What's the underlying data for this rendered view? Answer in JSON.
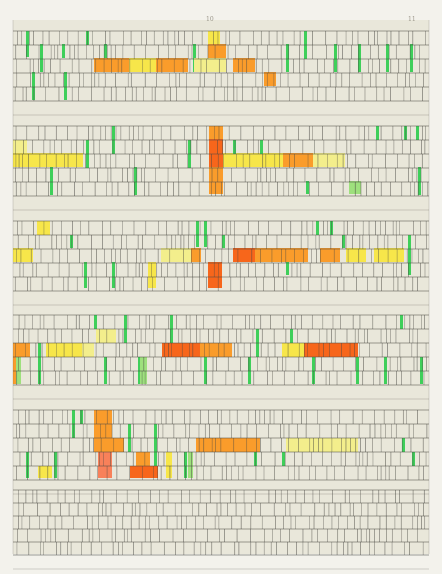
{
  "artwork": {
    "page_numbers": [
      "10",
      "11"
    ],
    "colors": {
      "background": "#f3f2ec",
      "paper": "#e9e7da",
      "rule_line": "#4b4a44",
      "green": "#3fcf5a",
      "light_green": "#9ee07d",
      "yellow": "#f7e64a",
      "pale_yellow": "#f3ee8c",
      "orange": "#fa9c2b",
      "dark_orange": "#f7661b",
      "salmon": "#f8815a"
    },
    "bands": 6,
    "strokes_per_band": 5
  }
}
